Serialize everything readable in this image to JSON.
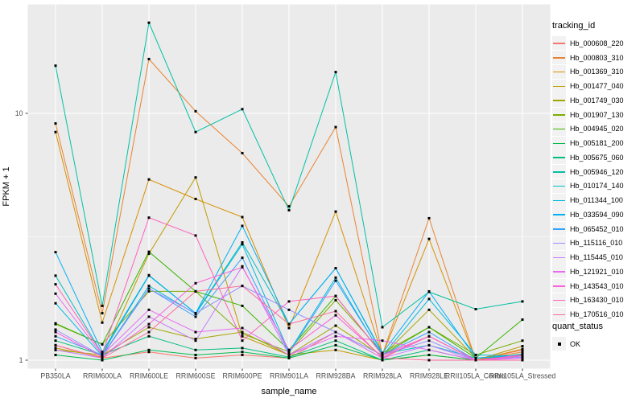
{
  "chart_data": {
    "type": "line",
    "title": "",
    "xlabel": "sample_name",
    "ylabel": "FPKM + 1",
    "y_scale": "log10",
    "y_ticks": [
      1,
      10
    ],
    "y_minor_ticks": [
      3.162
    ],
    "ylim": [
      0.92,
      27.5
    ],
    "panel_bg": "#EBEBEB",
    "grid_color": "#FFFFFF",
    "point_color": "#000000",
    "axis_text_color": "#4D4D4D",
    "categories": [
      "PB350LA",
      "RRIM600LA",
      "RRIM600LE",
      "RRIM600SE",
      "RRIM600PE",
      "RRIM901LA",
      "RRIM928BA",
      "RRIM928LA",
      "RRIM928LE",
      "RRII105LA_Control",
      "RRII105LA_Stressed"
    ],
    "legend": {
      "series_title": "tracking_id",
      "shape_title": "quant_status",
      "shape_items": [
        {
          "label": "OK"
        }
      ]
    },
    "series": [
      {
        "name": "Hb_000608_220",
        "color": "#F8766D",
        "values": [
          1.15,
          1.02,
          1.08,
          1.02,
          1.05,
          1.02,
          1.3,
          1.02,
          1.25,
          1.0,
          1.1
        ]
      },
      {
        "name": "Hb_000803_310",
        "color": "#EA8331",
        "values": [
          9.1,
          1.55,
          16.6,
          10.2,
          6.9,
          4.2,
          8.8,
          1.05,
          3.76,
          1.0,
          1.08
        ]
      },
      {
        "name": "Hb_001369_310",
        "color": "#D89000",
        "values": [
          8.4,
          1.42,
          5.4,
          4.5,
          3.8,
          1.35,
          4.0,
          1.05,
          3.1,
          1.0,
          1.11
        ]
      },
      {
        "name": "Hb_001477_040",
        "color": "#C09B00",
        "values": [
          1.12,
          1.03,
          2.7,
          5.5,
          1.25,
          1.05,
          1.1,
          1.0,
          1.05,
          1.0,
          1.14
        ]
      },
      {
        "name": "Hb_001749_030",
        "color": "#A3A500",
        "values": [
          1.1,
          1.05,
          1.36,
          1.22,
          1.3,
          1.05,
          1.38,
          1.04,
          1.6,
          1.02,
          1.05
        ]
      },
      {
        "name": "Hb_001907_130",
        "color": "#7CAE00",
        "values": [
          1.4,
          1.16,
          1.9,
          1.9,
          1.28,
          1.08,
          1.75,
          1.07,
          1.36,
          1.05,
          1.2
        ]
      },
      {
        "name": "Hb_004945_020",
        "color": "#39B600",
        "values": [
          1.41,
          1.16,
          2.75,
          1.9,
          1.66,
          1.1,
          1.82,
          1.05,
          1.36,
          1.02,
          1.46
        ]
      },
      {
        "name": "Hb_005181_200",
        "color": "#00BB4E",
        "values": [
          1.05,
          1.0,
          1.1,
          1.05,
          1.08,
          1.02,
          1.15,
          1.0,
          1.05,
          1.0,
          1.04
        ]
      },
      {
        "name": "Hb_005675_060",
        "color": "#00BF7D",
        "values": [
          1.2,
          1.05,
          1.25,
          1.1,
          1.12,
          1.03,
          1.2,
          1.0,
          1.1,
          1.0,
          1.06
        ]
      },
      {
        "name": "Hb_005946_120",
        "color": "#00C1A3",
        "values": [
          15.6,
          1.66,
          23.3,
          8.4,
          10.4,
          4.05,
          14.7,
          1.36,
          1.89,
          1.61,
          1.73
        ]
      },
      {
        "name": "Hb_010174_140",
        "color": "#00BFC4",
        "values": [
          2.2,
          1.06,
          2.2,
          1.55,
          3.0,
          1.4,
          2.36,
          1.06,
          1.15,
          1.02,
          1.05
        ]
      },
      {
        "name": "Hb_011344_100",
        "color": "#00BAE0",
        "values": [
          1.7,
          1.04,
          2.0,
          1.54,
          2.95,
          1.08,
          2.16,
          1.04,
          1.77,
          1.05,
          1.04
        ]
      },
      {
        "name": "Hb_033594_090",
        "color": "#00B0F6",
        "values": [
          2.74,
          1.08,
          2.21,
          1.55,
          3.5,
          1.4,
          2.36,
          1.07,
          1.9,
          1.02,
          1.05
        ]
      },
      {
        "name": "Hb_065452_010",
        "color": "#35A2FF",
        "values": [
          1.25,
          1.05,
          1.95,
          1.5,
          2.6,
          1.07,
          2.1,
          1.05,
          1.3,
          1.0,
          1.04
        ]
      },
      {
        "name": "Hb_115116_010",
        "color": "#9590FF",
        "values": [
          1.33,
          1.04,
          1.95,
          1.55,
          2.0,
          1.6,
          1.3,
          1.05,
          1.2,
          1.0,
          1.03
        ]
      },
      {
        "name": "Hb_115445_010",
        "color": "#C77CFF",
        "values": [
          1.1,
          1.02,
          1.5,
          1.2,
          2.4,
          1.05,
          1.3,
          1.02,
          1.15,
          1.0,
          1.02
        ]
      },
      {
        "name": "Hb_121921_010",
        "color": "#E76BF3",
        "values": [
          1.86,
          1.05,
          1.6,
          1.3,
          1.35,
          1.05,
          1.25,
          1.2,
          1.1,
          1.0,
          1.02
        ]
      },
      {
        "name": "Hb_143543_010",
        "color": "#FA62DB",
        "values": [
          1.3,
          1.03,
          1.4,
          2.05,
          2.38,
          1.1,
          1.52,
          1.03,
          1.25,
          1.0,
          1.04
        ]
      },
      {
        "name": "Hb_163430_010",
        "color": "#FF62BC",
        "values": [
          2.03,
          1.06,
          3.78,
          3.2,
          1.2,
          1.73,
          1.82,
          1.05,
          1.25,
          1.0,
          1.05
        ]
      },
      {
        "name": "Hb_170516_010",
        "color": "#FF6A98",
        "values": [
          1.15,
          1.02,
          1.3,
          1.9,
          2.0,
          1.4,
          1.58,
          1.02,
          1.0,
          1.0,
          1.0
        ]
      }
    ]
  }
}
